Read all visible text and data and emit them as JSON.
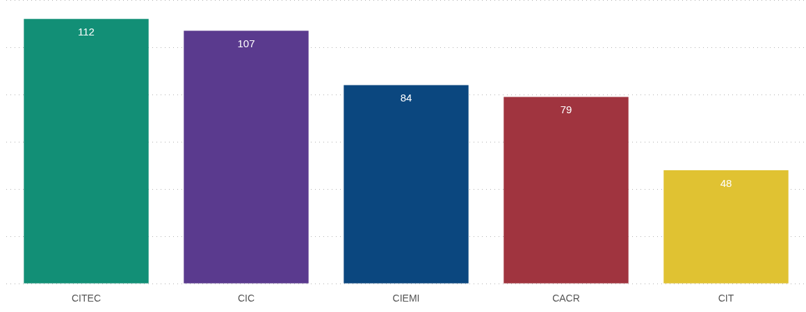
{
  "chart_data": {
    "type": "bar",
    "categories": [
      "CITEC",
      "CIC",
      "CIEMI",
      "CACR",
      "CIT"
    ],
    "values": [
      112,
      107,
      84,
      79,
      48
    ],
    "colors": [
      "#128f76",
      "#5a3a8e",
      "#0b477f",
      "#a0343f",
      "#e0c232"
    ],
    "grid": "y",
    "tick_labels": "x",
    "data_labels": true
  }
}
